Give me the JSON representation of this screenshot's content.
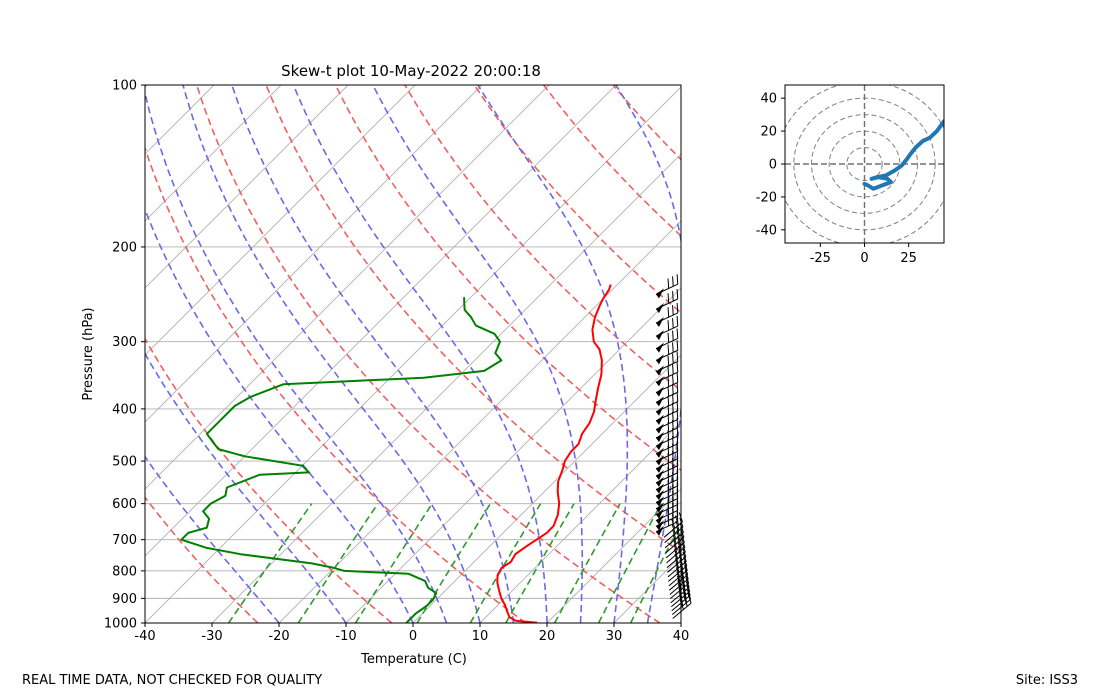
{
  "chart_data": [
    {
      "type": "line",
      "subtype": "skew-t",
      "title": "Skew-t plot 10-May-2022 20:00:18",
      "xlabel": "Temperature (C)",
      "ylabel": "Pressure (hPa)",
      "xlim": [
        -40,
        40
      ],
      "ylim": [
        1000,
        100
      ],
      "x_ticks": [
        -40,
        -30,
        -20,
        -10,
        0,
        10,
        20,
        30,
        40
      ],
      "y_ticks": [
        100,
        200,
        300,
        400,
        500,
        600,
        700,
        800,
        900,
        1000
      ],
      "isotherm_lines": true,
      "dry_adiabats": "red dashed",
      "moist_adiabats": "blue dashed",
      "mixing_ratio_lines": "green dashed",
      "series": [
        {
          "name": "Temperature",
          "color": "#ff0000",
          "points": [
            [
              18.5,
              999
            ],
            [
              15,
              990
            ],
            [
              13.5,
              975
            ],
            [
              12.5,
              955
            ],
            [
              11,
              925
            ],
            [
              9.5,
              900
            ],
            [
              8,
              870
            ],
            [
              6.5,
              840
            ],
            [
              5.5,
              815
            ],
            [
              5,
              790
            ],
            [
              5.5,
              770
            ],
            [
              5,
              745
            ],
            [
              5.5,
              720
            ],
            [
              6,
              700
            ],
            [
              6.5,
              680
            ],
            [
              6.5,
              660
            ],
            [
              5.5,
              630
            ],
            [
              4,
              600
            ],
            [
              2,
              570
            ],
            [
              0.5,
              545
            ],
            [
              -0.5,
              520
            ],
            [
              -1.5,
              500
            ],
            [
              -2,
              480
            ],
            [
              -2,
              465
            ],
            [
              -3,
              445
            ],
            [
              -3.5,
              425
            ],
            [
              -4.5,
              405
            ],
            [
              -6,
              385
            ],
            [
              -7.5,
              365
            ],
            [
              -9,
              345
            ],
            [
              -11,
              325
            ],
            [
              -13,
              310
            ],
            [
              -15,
              300
            ],
            [
              -17,
              285
            ],
            [
              -18.5,
              270
            ],
            [
              -19.5,
              257
            ],
            [
              -20,
              250
            ],
            [
              -20.5,
              240
            ],
            [
              -21,
              235
            ]
          ]
        },
        {
          "name": "Dewpoint",
          "color": "#008000",
          "points": [
            [
              -1,
              1000
            ],
            [
              -1,
              960
            ],
            [
              -0.5,
              930
            ],
            [
              -0.5,
              905
            ],
            [
              -1,
              880
            ],
            [
              -3,
              860
            ],
            [
              -4.5,
              835
            ],
            [
              -8,
              810
            ],
            [
              -18,
              800
            ],
            [
              -20,
              790
            ],
            [
              -24,
              775
            ],
            [
              -36,
              745
            ],
            [
              -42,
              725
            ],
            [
              -47,
              700
            ],
            [
              -47,
              680
            ],
            [
              -45,
              665
            ],
            [
              -46,
              640
            ],
            [
              -48,
              620
            ],
            [
              -48,
              600
            ],
            [
              -47,
              580
            ],
            [
              -48,
              560
            ],
            [
              -45,
              530
            ],
            [
              -38,
              525
            ],
            [
              -40,
              510
            ],
            [
              -50,
              490
            ],
            [
              -55,
              475
            ],
            [
              -57,
              460
            ],
            [
              -59,
              445
            ],
            [
              -59,
              425
            ],
            [
              -59,
              410
            ],
            [
              -59,
              395
            ],
            [
              -58,
              380
            ],
            [
              -55,
              360
            ],
            [
              -35,
              350
            ],
            [
              -27,
              340
            ],
            [
              -26,
              325
            ],
            [
              -28,
              315
            ],
            [
              -29,
              300
            ],
            [
              -31,
              290
            ],
            [
              -35,
              280
            ],
            [
              -37,
              270
            ],
            [
              -39,
              262
            ],
            [
              -40,
              255
            ],
            [
              -41,
              248
            ]
          ]
        }
      ],
      "wind_barbs": "shown along right edge"
    },
    {
      "type": "line",
      "subtype": "hodograph",
      "xlim": [
        -45,
        45
      ],
      "ylim": [
        -48,
        48
      ],
      "x_ticks": [
        -25,
        0,
        25
      ],
      "y_ticks": [
        -40,
        -20,
        0,
        20,
        40
      ],
      "rings": [
        10,
        20,
        30,
        40,
        50
      ],
      "series": [
        {
          "name": "Wind",
          "color": "#1f77b4",
          "points": [
            [
              0,
              -12
            ],
            [
              2,
              -13
            ],
            [
              5,
              -15
            ],
            [
              10,
              -13
            ],
            [
              15,
              -11
            ],
            [
              13,
              -9
            ],
            [
              8,
              -8
            ],
            [
              4,
              -9
            ],
            [
              7,
              -8
            ],
            [
              12,
              -7
            ],
            [
              17,
              -4
            ],
            [
              21,
              -1
            ],
            [
              24,
              3
            ],
            [
              26,
              6
            ],
            [
              29,
              10
            ],
            [
              33,
              14
            ],
            [
              37,
              16
            ],
            [
              41,
              20
            ],
            [
              45,
              26
            ]
          ]
        }
      ]
    }
  ],
  "footer": {
    "left_text": "REAL TIME DATA, NOT CHECKED FOR QUALITY",
    "right_text": "Site: ISS3"
  }
}
